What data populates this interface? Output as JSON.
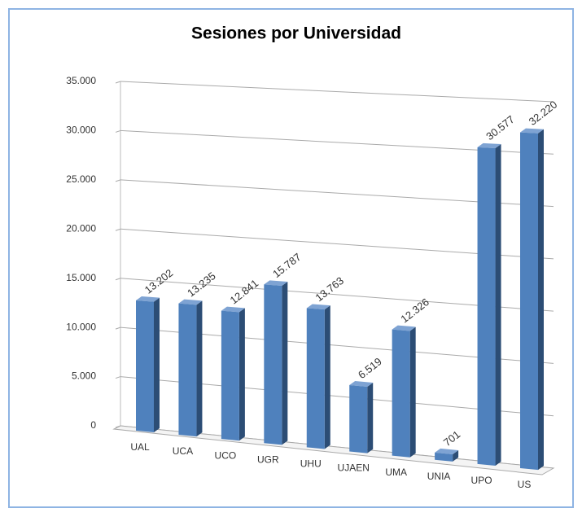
{
  "chart_data": {
    "type": "bar",
    "title": "Sesiones por Universidad",
    "categories": [
      "UAL",
      "UCA",
      "UCO",
      "UGR",
      "UHU",
      "UJAEN",
      "UMA",
      "UNIA",
      "UPO",
      "US"
    ],
    "values": [
      13202,
      13235,
      12841,
      15787,
      13763,
      6519,
      12326,
      701,
      30577,
      32220
    ],
    "value_labels": [
      "13.202",
      "13.235",
      "12.841",
      "15.787",
      "13.763",
      "6.519",
      "12.326",
      "701",
      "30.577",
      "32.220"
    ],
    "color": "#4f81bd",
    "ylim": [
      0,
      35000
    ],
    "yticks": [
      0,
      {
        "value": 5000,
        "label": "5.000"
      },
      {
        "value": 10000,
        "label": "10.000"
      },
      {
        "value": 15000,
        "label": "15.000"
      },
      {
        "value": 20000,
        "label": "20.000"
      },
      {
        "value": 25000,
        "label": "25.000"
      },
      {
        "value": 30000,
        "label": "30.000"
      },
      {
        "value": 35000,
        "label": "35.000"
      }
    ],
    "grid": true
  }
}
